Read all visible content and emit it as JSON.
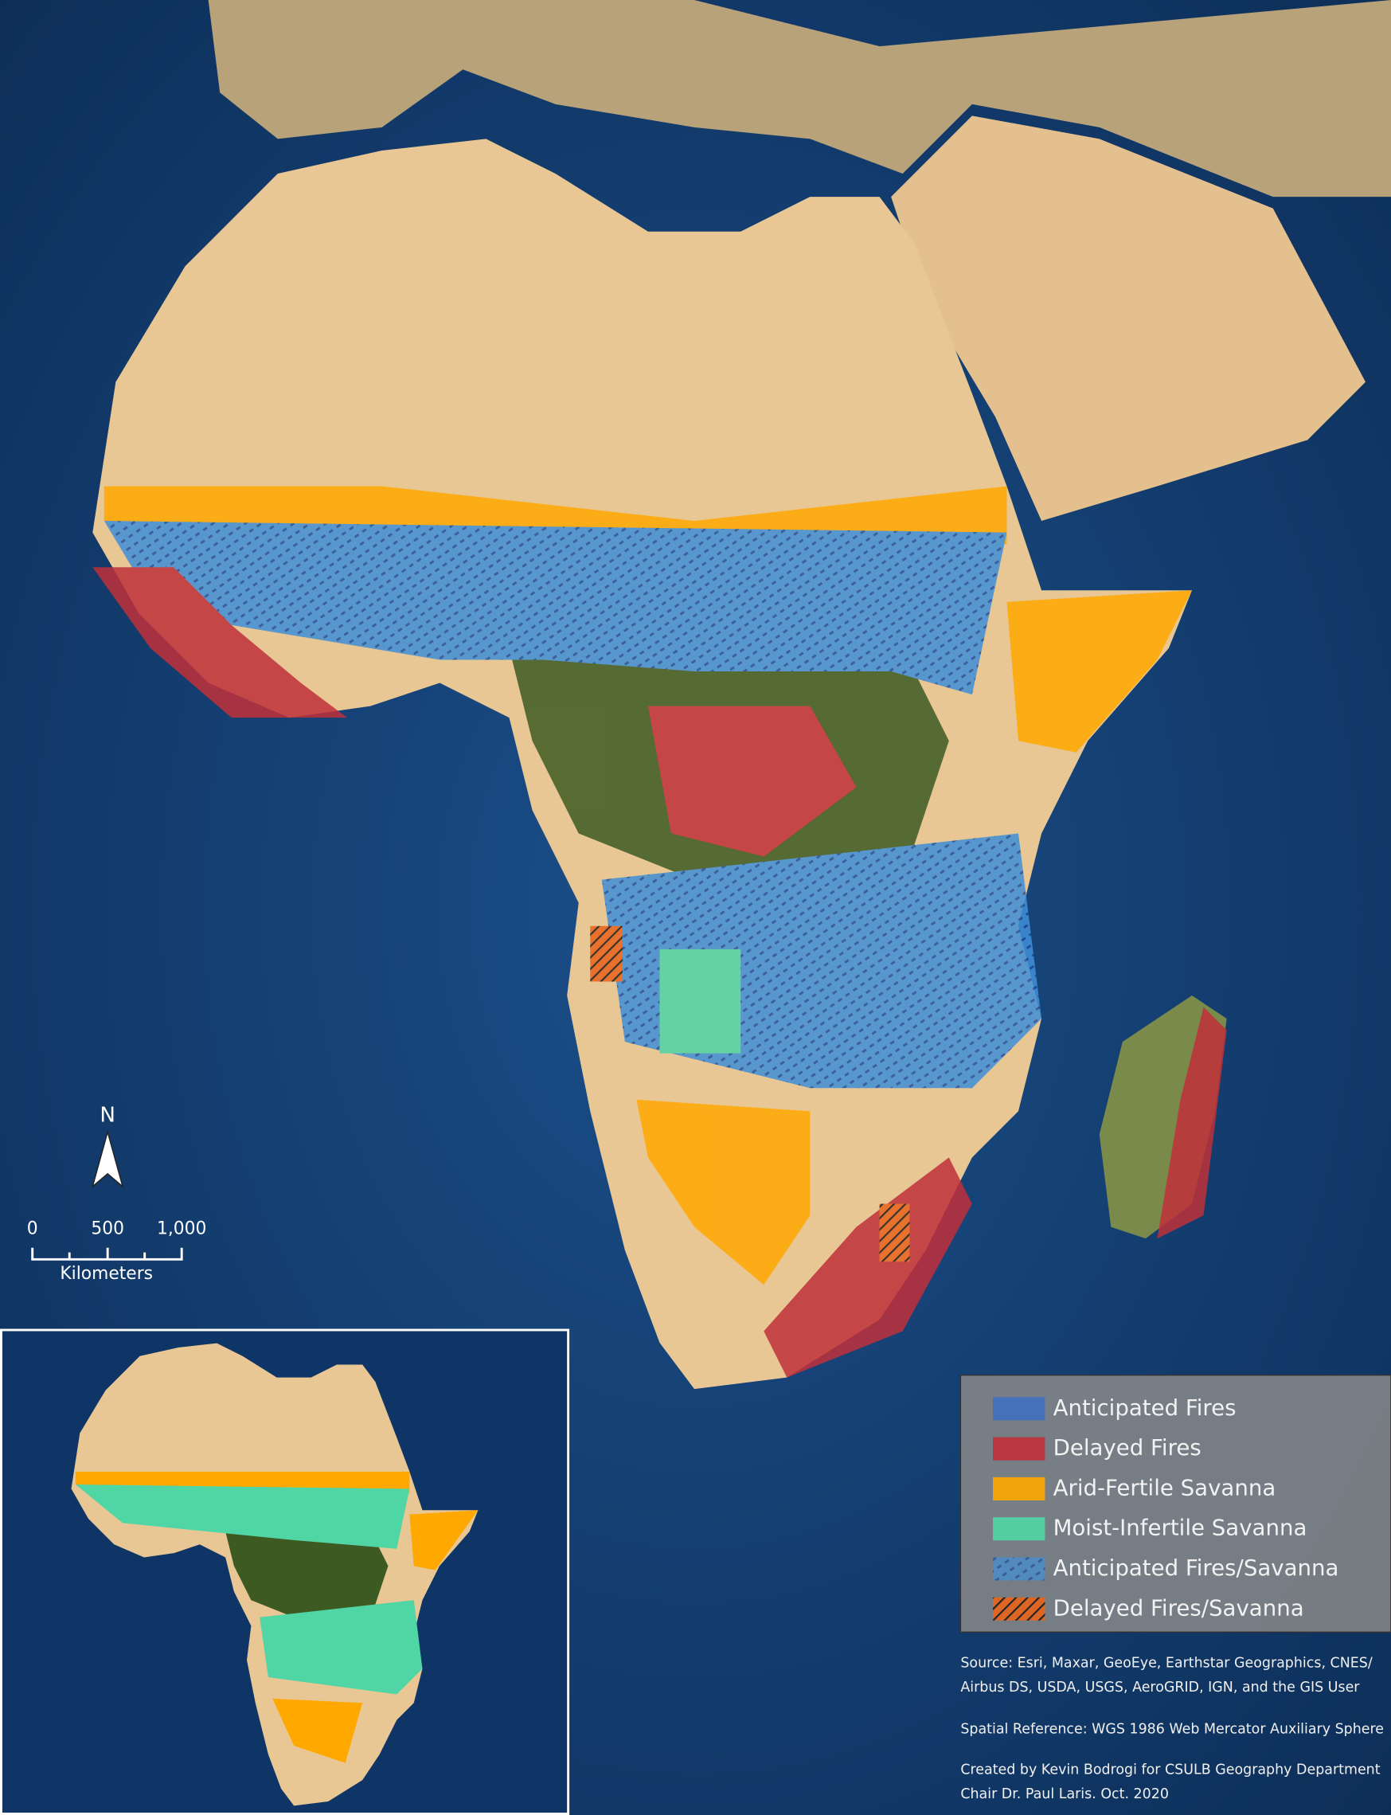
{
  "legend": {
    "items": [
      {
        "label": "Anticipated Fires",
        "color": "#3f6fc0",
        "pattern": "solid"
      },
      {
        "label": "Delayed Fires",
        "color": "#c0303a",
        "pattern": "solid"
      },
      {
        "label": "Arid-Fertile Savanna",
        "color": "#ffa800",
        "pattern": "solid"
      },
      {
        "label": "Moist-Infertile Savanna",
        "color": "#4fd6a4",
        "pattern": "solid"
      },
      {
        "label": "Anticipated Fires/Savanna",
        "color": "#3f6fc0",
        "pattern": "dash"
      },
      {
        "label": "Delayed Fires/Savanna",
        "color": "#e8641b",
        "pattern": "hatch"
      }
    ]
  },
  "north_arrow": {
    "label": "N"
  },
  "scale_bar": {
    "labels": [
      "0",
      "500",
      "1,000"
    ],
    "unit": "Kilometers"
  },
  "notes": [
    "Source: Esri, Maxar, GeoEye, Earthstar Geographics, CNES/",
    "Airbus DS, USDA, USGS, AeroGRID, IGN, and the GIS User",
    "Spatial Reference: WGS 1986 Web Mercator Auxiliary Sphere",
    "Created by Kevin Bodrogi for CSULB Geography Department",
    "Chair Dr. Paul Laris. Oct. 2020"
  ]
}
